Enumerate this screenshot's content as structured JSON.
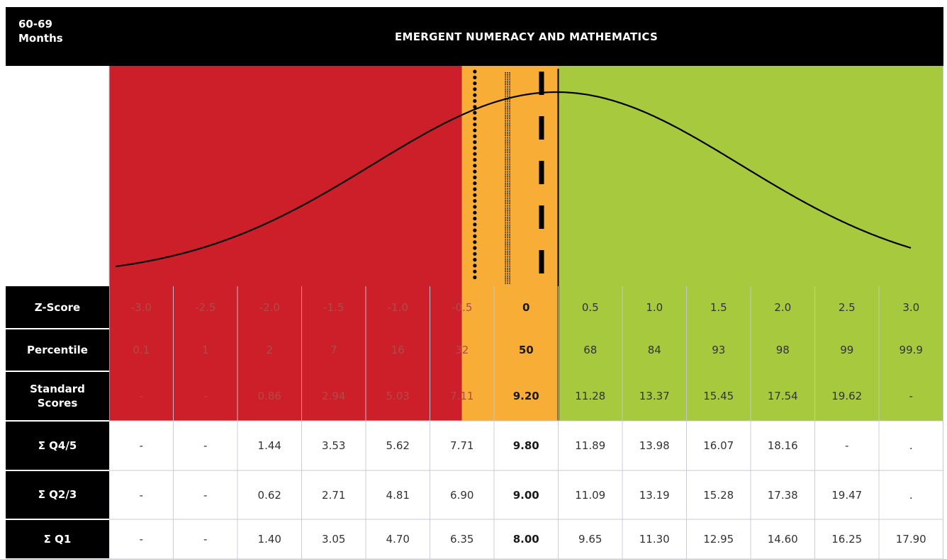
{
  "header": {
    "age_group": "60-69\nMonths",
    "title": "EMERGENT NUMERACY AND MATHEMATICS"
  },
  "colors": {
    "red": "#cc1f2a",
    "orange": "#f7ad36",
    "green": "#a6c93e",
    "black": "#000000"
  },
  "chart_data": {
    "type": "table",
    "curve": "normal-distribution",
    "columns": [
      "-3.0",
      "-2.5",
      "-2.0",
      "-1.5",
      "-1.0",
      "-0.5",
      "0",
      "0.5",
      "1.0",
      "1.5",
      "2.0",
      "2.5",
      "3.0"
    ],
    "rows": [
      {
        "label": "Z-Score",
        "values": [
          "-3.0",
          "-2.5",
          "-2.0",
          "-1.5",
          "-1.0",
          "-0.5",
          "0",
          "0.5",
          "1.0",
          "1.5",
          "2.0",
          "2.5",
          "3.0"
        ]
      },
      {
        "label": "Percentile",
        "values": [
          "0.1",
          "1",
          "2",
          "7",
          "16",
          "32",
          "50",
          "68",
          "84",
          "93",
          "98",
          "99",
          "99.9"
        ]
      },
      {
        "label": "Standard\nScores",
        "values": [
          "-",
          "-",
          "0.86",
          "2.94",
          "5.03",
          "7.11",
          "9.20",
          "11.28",
          "13.37",
          "15.45",
          "17.54",
          "19.62",
          "-"
        ]
      },
      {
        "label": "Σ Q4/5",
        "values": [
          "-",
          "-",
          "1.44",
          "3.53",
          "5.62",
          "7.71",
          "9.80",
          "11.89",
          "13.98",
          "16.07",
          "18.16",
          "-",
          "."
        ]
      },
      {
        "label": "Σ Q2/3",
        "values": [
          "-",
          "-",
          "0.62",
          "2.71",
          "4.81",
          "6.90",
          "9.00",
          "11.09",
          "13.19",
          "15.28",
          "17.38",
          "19.47",
          "."
        ]
      },
      {
        "label": "Σ Q1",
        "values": [
          "-",
          "-",
          "1.40",
          "3.05",
          "4.70",
          "6.35",
          "8.00",
          "9.65",
          "11.30",
          "12.95",
          "14.60",
          "16.25",
          "17.90"
        ]
      }
    ],
    "zones": [
      {
        "name": "red",
        "z_from": -3.0,
        "z_to": -0.5
      },
      {
        "name": "orange",
        "z_from": -0.5,
        "z_to": 0.25
      },
      {
        "name": "green",
        "z_from": 0.25,
        "z_to": 3.0
      }
    ],
    "markers": [
      {
        "style": "dotted",
        "z": -0.4
      },
      {
        "style": "hatched",
        "z": -0.15
      },
      {
        "style": "dashed",
        "z": 0.12
      },
      {
        "style": "solid",
        "z": 0.25
      }
    ]
  }
}
